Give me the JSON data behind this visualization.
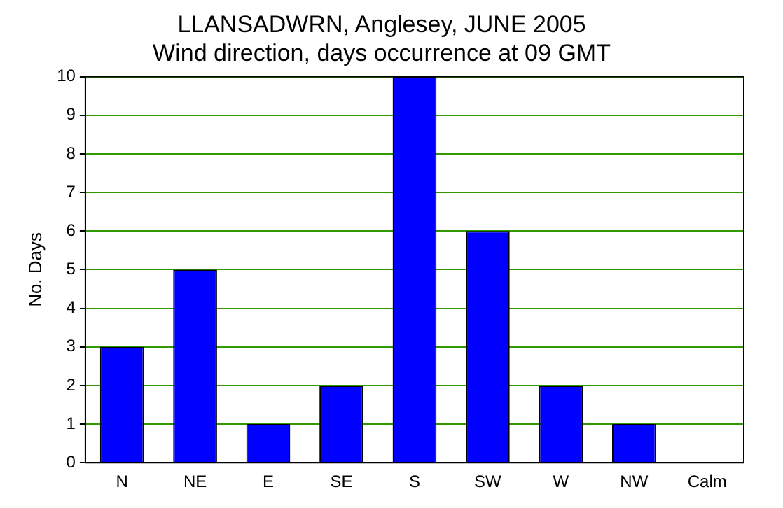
{
  "chart_data": {
    "type": "bar",
    "title": [
      "LLANSADWRN, Anglesey, JUNE 2005",
      "Wind direction, days occurrence at 09 GMT"
    ],
    "ylabel": "No. Days",
    "categories": [
      "N",
      "NE",
      "E",
      "SE",
      "S",
      "SW",
      "W",
      "NW",
      "Calm"
    ],
    "values": [
      3,
      5,
      1,
      2,
      10,
      6,
      2,
      1,
      0
    ],
    "color": "#0000ff",
    "ylim": [
      0,
      10
    ],
    "yticks": [
      0,
      1,
      2,
      3,
      4,
      5,
      6,
      7,
      8,
      9,
      10
    ],
    "grid": "y"
  }
}
